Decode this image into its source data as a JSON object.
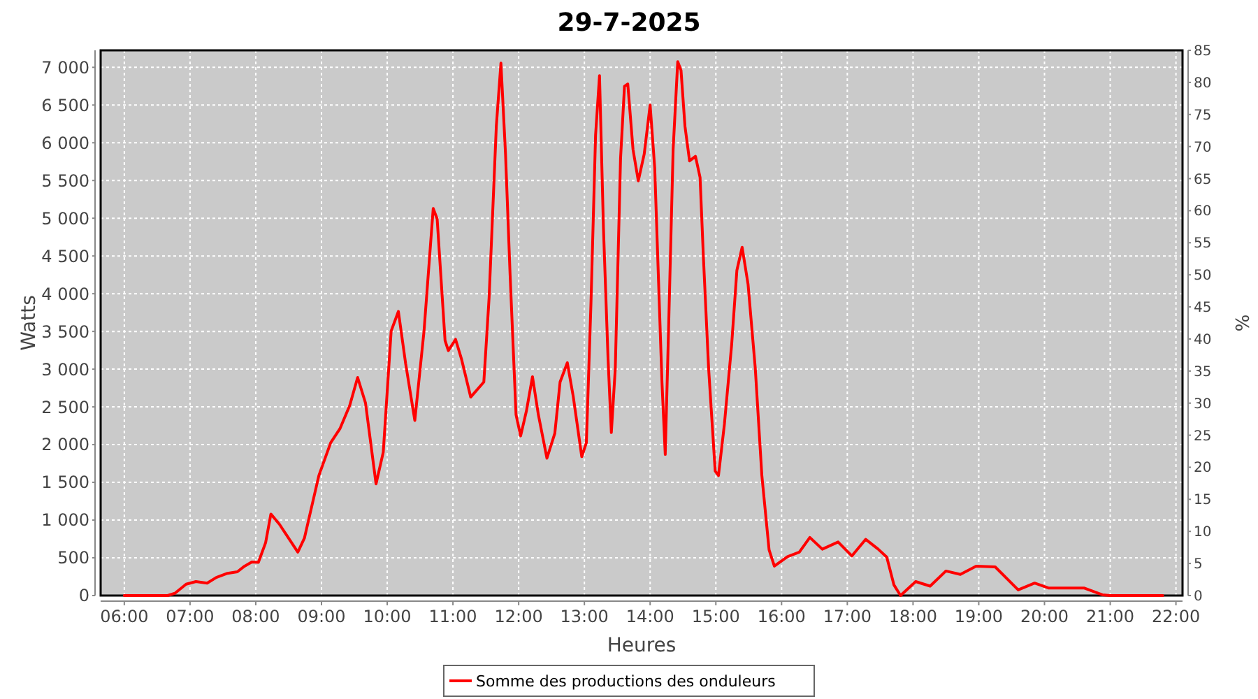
{
  "chart_data": {
    "type": "line",
    "title": "29-7-2025",
    "xlabel": "Heures",
    "ylabel": "Watts",
    "y2label": "%",
    "x": [
      6.0,
      6.66,
      6.77,
      6.94,
      7.09,
      7.26,
      7.4,
      7.57,
      7.72,
      7.83,
      7.94,
      8.04,
      8.15,
      8.23,
      8.36,
      8.64,
      8.74,
      8.96,
      9.14,
      9.28,
      9.43,
      9.55,
      9.67,
      9.83,
      9.94,
      10.06,
      10.17,
      10.28,
      10.42,
      10.56,
      10.7,
      10.76,
      10.88,
      10.93,
      11.04,
      11.13,
      11.27,
      11.47,
      11.55,
      11.66,
      11.73,
      11.8,
      11.87,
      11.96,
      12.03,
      12.12,
      12.21,
      12.3,
      12.43,
      12.55,
      12.63,
      12.74,
      12.83,
      12.96,
      13.03,
      13.1,
      13.17,
      13.23,
      13.29,
      13.36,
      13.41,
      13.47,
      13.55,
      13.61,
      13.66,
      13.74,
      13.82,
      13.91,
      14.0,
      14.07,
      14.18,
      14.23,
      14.28,
      14.35,
      14.42,
      14.47,
      14.53,
      14.6,
      14.69,
      14.76,
      14.81,
      14.89,
      14.99,
      15.04,
      15.13,
      15.24,
      15.32,
      15.4,
      15.49,
      15.6,
      15.7,
      15.81,
      15.89,
      16.09,
      16.27,
      16.43,
      16.62,
      16.86,
      17.07,
      17.28,
      17.47,
      17.6,
      17.71,
      17.81,
      18.04,
      18.26,
      18.5,
      18.72,
      18.96,
      19.25,
      19.6,
      19.85,
      20.06,
      20.6,
      20.88,
      21.0,
      21.8
    ],
    "series": [
      {
        "name": "Somme des productions des onduleurs",
        "color": "#ff0000",
        "values": [
          0,
          0,
          30,
          150,
          185,
          165,
          240,
          295,
          315,
          390,
          445,
          440,
          700,
          1080,
          945,
          575,
          760,
          1590,
          2025,
          2210,
          2520,
          2890,
          2550,
          1480,
          1900,
          3505,
          3765,
          3075,
          2320,
          3505,
          5130,
          4990,
          3380,
          3245,
          3395,
          3135,
          2630,
          2830,
          3945,
          6220,
          7055,
          5850,
          4245,
          2395,
          2115,
          2455,
          2900,
          2395,
          1820,
          2150,
          2830,
          3085,
          2640,
          1840,
          2025,
          3875,
          6100,
          6890,
          4865,
          3135,
          2160,
          3010,
          5790,
          6750,
          6780,
          5910,
          5495,
          5850,
          6500,
          5665,
          2830,
          1870,
          3505,
          5910,
          7075,
          6960,
          6220,
          5760,
          5820,
          5540,
          4495,
          3010,
          1650,
          1590,
          2270,
          3320,
          4310,
          4615,
          4125,
          3010,
          1590,
          605,
          390,
          515,
          575,
          770,
          615,
          710,
          525,
          745,
          615,
          510,
          140,
          0,
          185,
          125,
          325,
          280,
          390,
          380,
          75,
          165,
          100,
          100,
          10,
          0,
          0
        ]
      }
    ],
    "xlim": [
      5.64,
      22.1
    ],
    "xticks": [
      {
        "value": 6,
        "label": "06:00"
      },
      {
        "value": 7,
        "label": "07:00"
      },
      {
        "value": 8,
        "label": "08:00"
      },
      {
        "value": 9,
        "label": "09:00"
      },
      {
        "value": 10,
        "label": "10:00"
      },
      {
        "value": 11,
        "label": "11:00"
      },
      {
        "value": 12,
        "label": "12:00"
      },
      {
        "value": 13,
        "label": "13:00"
      },
      {
        "value": 14,
        "label": "14:00"
      },
      {
        "value": 15,
        "label": "15:00"
      },
      {
        "value": 16,
        "label": "16:00"
      },
      {
        "value": 17,
        "label": "17:00"
      },
      {
        "value": 18,
        "label": "18:00"
      },
      {
        "value": 19,
        "label": "19:00"
      },
      {
        "value": 20,
        "label": "20:00"
      },
      {
        "value": 21,
        "label": "21:00"
      },
      {
        "value": 22,
        "label": "22:00"
      }
    ],
    "ylim": [
      0,
      7225
    ],
    "yticks": [
      0,
      500,
      {
        "value": 1000,
        "label": "1 000"
      },
      {
        "value": 1500,
        "label": "1 500"
      },
      {
        "value": 2000,
        "label": "2 000"
      },
      {
        "value": 2500,
        "label": "2 500"
      },
      {
        "value": 3000,
        "label": "3 000"
      },
      {
        "value": 3500,
        "label": "3 500"
      },
      {
        "value": 4000,
        "label": "4 000"
      },
      {
        "value": 4500,
        "label": "4 500"
      },
      {
        "value": 5000,
        "label": "5 000"
      },
      {
        "value": 5500,
        "label": "5 500"
      },
      {
        "value": 6000,
        "label": "6 000"
      },
      {
        "value": 6500,
        "label": "6 500"
      },
      {
        "value": 7000,
        "label": "7 000"
      }
    ],
    "y2lim": [
      0,
      85
    ],
    "y2ticks": [
      0,
      5,
      10,
      15,
      20,
      25,
      30,
      35,
      40,
      45,
      50,
      55,
      60,
      65,
      70,
      75,
      80,
      85
    ],
    "grid": true,
    "legend": "bottom",
    "line_style": "solid",
    "marker": "none"
  }
}
